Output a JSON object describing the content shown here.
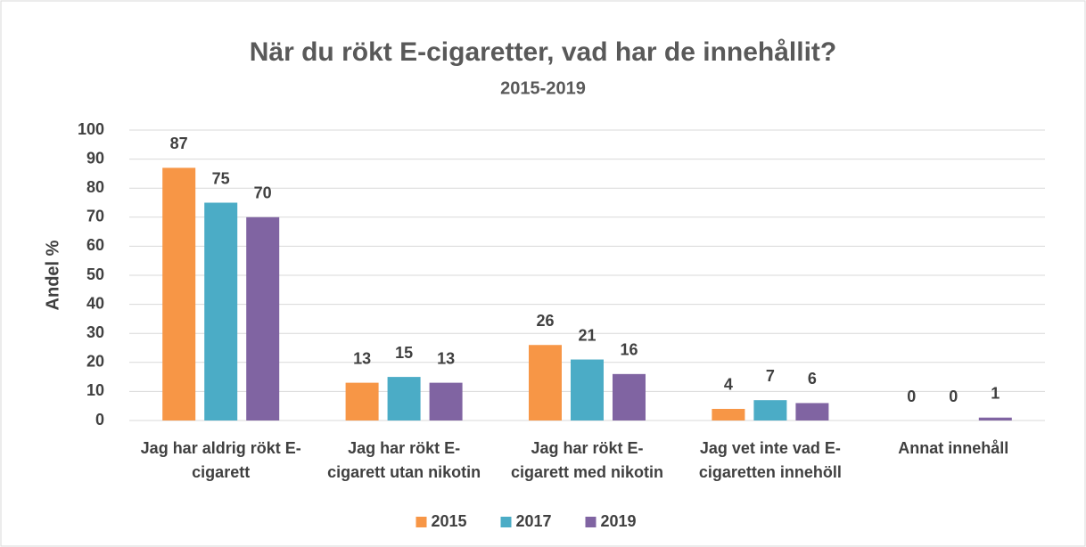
{
  "chart_data": {
    "type": "bar",
    "title": "När du rökt E-cigaretter, vad har de innehållit?",
    "subtitle": "2015-2019",
    "y_label": "Andel %",
    "categories": [
      [
        "Jag har aldrig rökt E-",
        "cigarett"
      ],
      [
        "Jag har rökt E-",
        "cigarett utan nikotin"
      ],
      [
        "Jag har rökt E-",
        "cigarett med nikotin"
      ],
      [
        "Jag vet inte vad E-",
        "cigaretten innehöll"
      ],
      [
        "Annat innehåll"
      ]
    ],
    "series": [
      {
        "name": "2015",
        "color": "#f79646",
        "values": [
          87,
          13,
          26,
          4,
          0
        ]
      },
      {
        "name": "2017",
        "color": "#4bacc6",
        "values": [
          75,
          15,
          21,
          7,
          0
        ]
      },
      {
        "name": "2019",
        "color": "#8064a2",
        "values": [
          70,
          13,
          16,
          6,
          1
        ]
      }
    ],
    "ylim": [
      0,
      100
    ],
    "yticks": [
      0,
      10,
      20,
      30,
      40,
      50,
      60,
      70,
      80,
      90,
      100
    ],
    "grid": true,
    "legend": "bottom"
  }
}
